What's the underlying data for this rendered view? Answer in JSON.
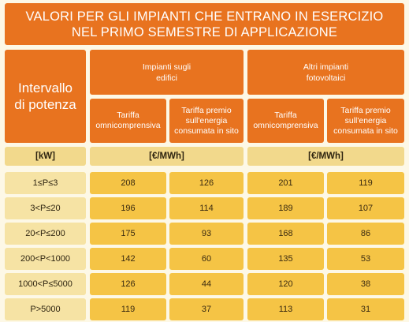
{
  "title": {
    "line1": "VALORI PER GLI IMPIANTI CHE ENTRANO IN ESERCIZIO",
    "line2": "NEL PRIMO SEMESTRE DI APPLICAZIONE"
  },
  "header": {
    "interval": {
      "line1": "Intervallo",
      "line2": "di potenza"
    },
    "group1": {
      "line1": "Impianti sugli",
      "line2": "edifici"
    },
    "group2": {
      "line1": "Altri impianti",
      "line2": "fotovoltaici"
    },
    "tariff_all": {
      "line1": "Tariffa",
      "line2": "omnicomprensiva"
    },
    "tariff_premium": {
      "line1": "Tariffa premio",
      "line2": "sull'energia",
      "line3": "consumata in sito"
    }
  },
  "units": {
    "power": "[kW]",
    "energy": "[€/MWh]"
  },
  "rows": [
    {
      "range": "1≤P≤3",
      "g1_all": "208",
      "g1_premium": "126",
      "g2_all": "201",
      "g2_premium": "119"
    },
    {
      "range": "3<P≤20",
      "g1_all": "196",
      "g1_premium": "114",
      "g2_all": "189",
      "g2_premium": "107"
    },
    {
      "range": "20<P≤200",
      "g1_all": "175",
      "g1_premium": "93",
      "g2_all": "168",
      "g2_premium": "86"
    },
    {
      "range": "200<P<1000",
      "g1_all": "142",
      "g1_premium": "60",
      "g2_all": "135",
      "g2_premium": "53"
    },
    {
      "range": "1000<P≤5000",
      "g1_all": "126",
      "g1_premium": "44",
      "g2_all": "120",
      "g2_premium": "38"
    },
    {
      "range": "P>5000",
      "g1_all": "119",
      "g1_premium": "37",
      "g2_all": "113",
      "g2_premium": "31"
    }
  ]
}
